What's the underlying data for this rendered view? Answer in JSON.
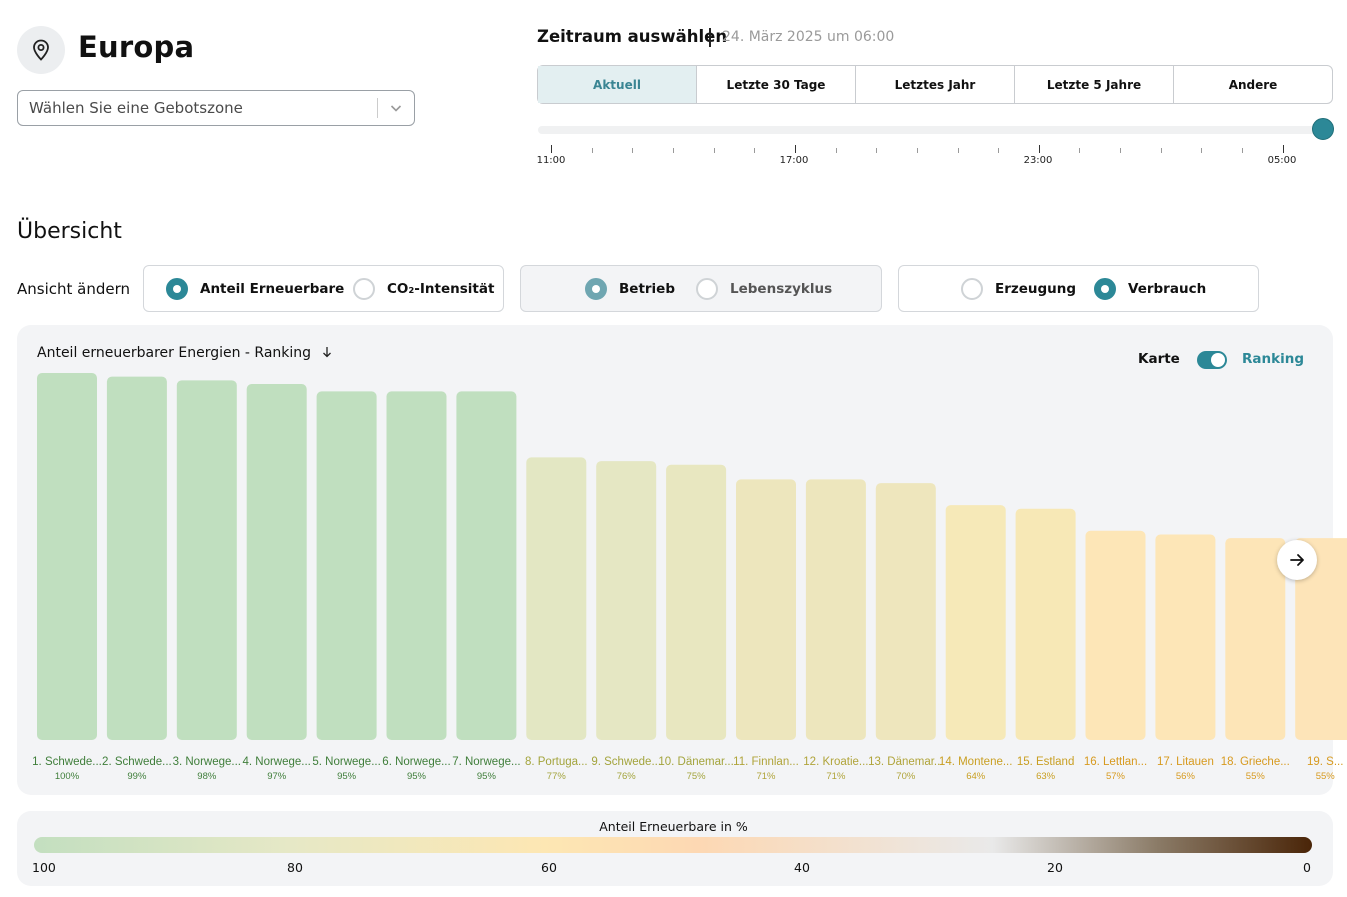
{
  "header": {
    "region_title": "Europa",
    "zone_placeholder": "Wählen Sie eine Gebotszone"
  },
  "time": {
    "title": "Zeitraum auswählen",
    "date": "24. März 2025 um 06:00",
    "tabs": [
      "Aktuell",
      "Letzte 30 Tage",
      "Letztes Jahr",
      "Letzte 5 Jahre",
      "Andere"
    ],
    "active_tab": "Aktuell",
    "slider_labels": [
      "11:00",
      "17:00",
      "23:00",
      "05:00"
    ]
  },
  "overview": {
    "title": "Übersicht",
    "view_label": "Ansicht ändern",
    "group1": [
      "Anteil Erneuerbare",
      "CO₂-Intensität"
    ],
    "group2": [
      "Betrieb",
      "Lebenszyklus"
    ],
    "group3": [
      "Erzeugung",
      "Verbrauch"
    ]
  },
  "chart": {
    "title": "Anteil erneuerbarer Energien - Ranking",
    "toggle_left": "Karte",
    "toggle_right": "Ranking"
  },
  "chart_data": {
    "type": "bar",
    "categories": [
      "1. Schwede...",
      "2. Schwede...",
      "3. Norwege...",
      "4. Norwege...",
      "5. Norwege...",
      "6. Norwege...",
      "7. Norwege...",
      "8. Portuga...",
      "9. Schwede...",
      "10. Dänemar...",
      "11. Finnlan...",
      "12. Kroatie...",
      "13. Dänemar...",
      "14. Montene...",
      "15. Estland",
      "16. Lettlan...",
      "17. Litauen",
      "18. Grieche...",
      "19. S..."
    ],
    "labels": [
      "100%",
      "99%",
      "98%",
      "97%",
      "95%",
      "95%",
      "95%",
      "77%",
      "76%",
      "75%",
      "71%",
      "71%",
      "70%",
      "64%",
      "63%",
      "57%",
      "56%",
      "55%",
      "55%"
    ],
    "values": [
      100,
      99,
      98,
      97,
      95,
      95,
      95,
      77,
      76,
      75,
      71,
      71,
      70,
      64,
      63,
      57,
      56,
      55,
      55
    ],
    "ylim": [
      0,
      100
    ],
    "bar_colors": [
      "#c0dfbf",
      "#c0dfbf",
      "#c0dfbf",
      "#c0dfbf",
      "#c0dfbf",
      "#c0dfbf",
      "#c0dfbf",
      "#e3e7c3",
      "#e5e7c3",
      "#e8e7c0",
      "#ede6bd",
      "#ede6bd",
      "#eee6bd",
      "#f6e9b8",
      "#f7e8b6",
      "#fde6b7",
      "#fde6b7",
      "#fde5b7",
      "#fde4b8"
    ],
    "label_colors": [
      "#3f7e3a",
      "#3f7e3a",
      "#3f7e3a",
      "#3f7e3a",
      "#3f7e3a",
      "#3f7e3a",
      "#3f7e3a",
      "#a3a43c",
      "#a3a43c",
      "#a3a43c",
      "#b0a43a",
      "#b0a43a",
      "#b0a43a",
      "#c99f22",
      "#c99f22",
      "#d79a1f",
      "#d79a1f",
      "#d79a1f",
      "#d79a1f"
    ]
  },
  "legend": {
    "title": "Anteil Erneuerbare in %",
    "ticks": [
      "100",
      "80",
      "60",
      "40",
      "20",
      "0"
    ]
  },
  "colors": {
    "accent": "#2c8897",
    "active_tab_bg": "#e3eff1"
  }
}
